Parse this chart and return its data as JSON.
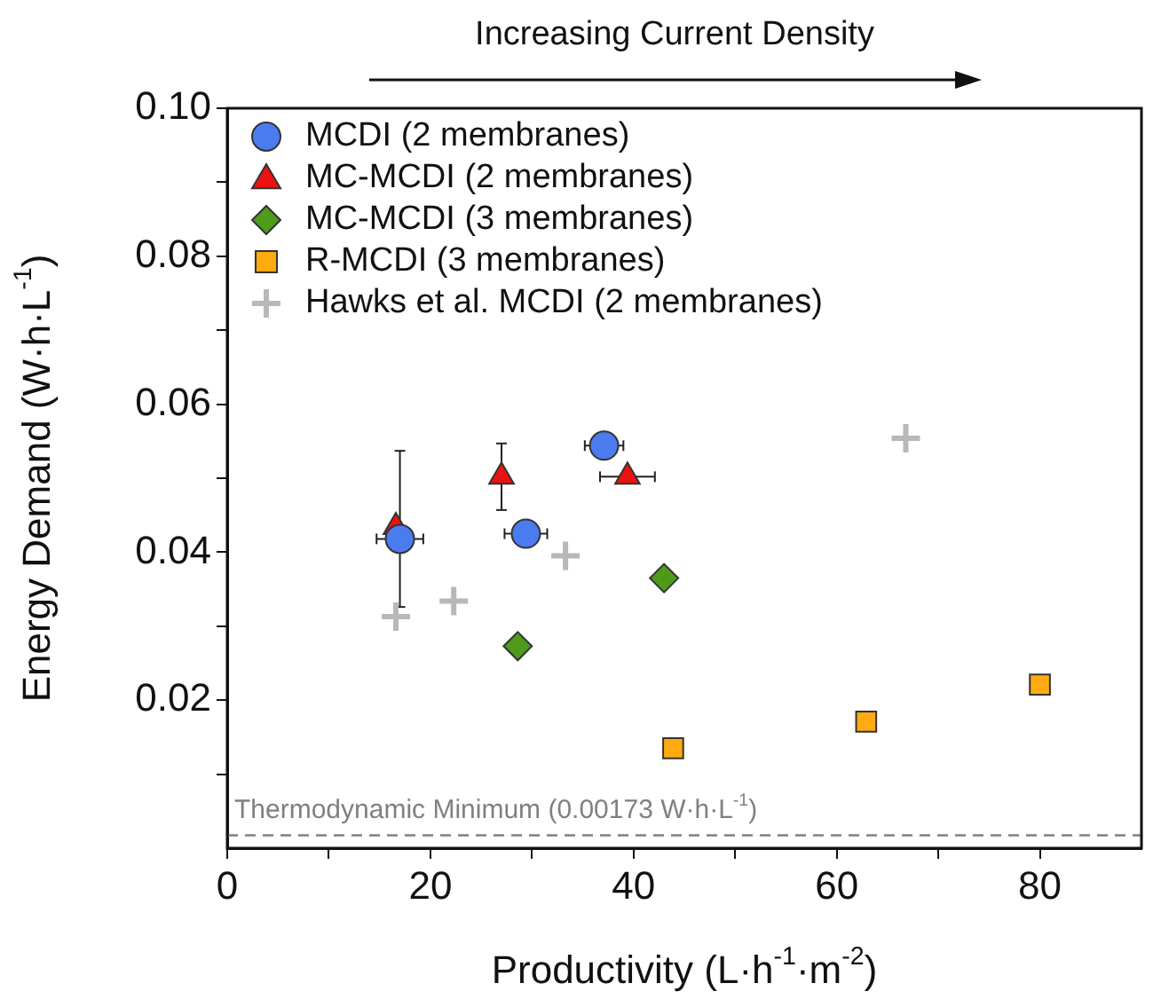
{
  "chart_data": {
    "type": "scatter",
    "xlabel": "Productivity (L·h$^{-1}$·m$^{-2}$)",
    "ylabel": "Energy Demand (W·h·L$^{-1}$)",
    "annotations": [
      "Increasing Current Density"
    ],
    "xlim": [
      0,
      90
    ],
    "xticks": [
      0,
      {
        "value": 10,
        "label": null
      },
      20,
      {
        "value": 30,
        "label": null
      },
      40,
      {
        "value": 50,
        "label": null
      },
      60,
      {
        "value": 70,
        "label": null
      },
      80
    ],
    "ylim": [
      0,
      0.1
    ],
    "yticks": [
      {
        "value": 0.01,
        "label": null
      },
      0.02,
      {
        "value": 0.03,
        "label": null
      },
      0.04,
      {
        "value": 0.05,
        "label": null
      },
      0.06,
      {
        "value": 0.07,
        "label": null
      },
      0.08,
      {
        "value": 0.09,
        "label": null
      },
      {
        "value": 0.1,
        "label": "0.10"
      }
    ],
    "grid": false,
    "legend": "top left",
    "ref_lines": [
      {
        "axis": "y",
        "value": 0.00173,
        "label": "Thermodynamic Minimum (0.00173 W·h·L$^{-1}$)",
        "color": "#808080",
        "line_style": "dashed"
      }
    ],
    "series": [
      {
        "name": "MCDI (2 membranes)",
        "color": "#4a7cf0",
        "marker": "circle",
        "x": [
          17.0,
          29.4,
          37.1
        ],
        "values": [
          0.0418,
          0.0425,
          0.0544
        ],
        "errors": [
          [
            0.0326,
            0.0537
          ],
          null,
          null
        ],
        "xerrors": [
          2.3,
          2.1,
          1.9
        ]
      },
      {
        "name": "MC-MCDI (2 membranes)",
        "color": "#ee1111",
        "marker": "triangle",
        "x": [
          16.6,
          27.0,
          39.4
        ],
        "values": [
          0.0434,
          0.0502,
          0.0502
        ],
        "errors": [
          null,
          0.0045,
          null
        ],
        "xerrors": [
          null,
          null,
          2.7
        ]
      },
      {
        "name": "MC-MCDI (3 membranes)",
        "color": "#4e9a1a",
        "marker": "diamond",
        "x": [
          28.6,
          43.0
        ],
        "values": [
          0.0273,
          0.0365
        ],
        "errors": [
          0.001,
          null
        ]
      },
      {
        "name": "R-MCDI (3 membranes)",
        "color": "#ffaa10",
        "marker": "square",
        "x": [
          43.9,
          62.9,
          80.0
        ],
        "values": [
          0.0135,
          0.0171,
          0.0221
        ]
      },
      {
        "name": "Hawks et al. MCDI (2 membranes)",
        "color": "#b8b8b8",
        "marker": "cross",
        "x": [
          16.6,
          22.3,
          33.3,
          66.8
        ],
        "values": [
          0.0313,
          0.0334,
          0.0395,
          0.0554
        ]
      }
    ]
  }
}
